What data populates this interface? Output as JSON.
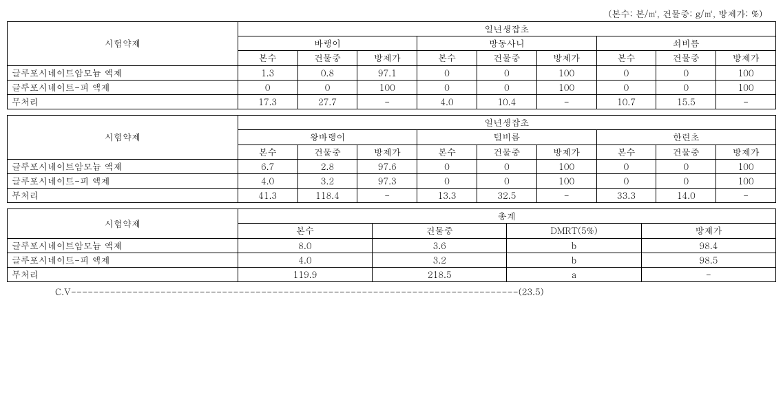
{
  "caption": "(본수: 본/㎡, 건물중: g/㎡, 방제가: %)",
  "row_header_label": "시험약제",
  "group_header1": "일년생잡초",
  "group_header2": "일년생잡초",
  "group_header3": "총계",
  "subcols": [
    "본수",
    "건물중",
    "방제가"
  ],
  "weeds1": [
    "바랭이",
    "방동사니",
    "쇠비름"
  ],
  "weeds2": [
    "왕바랭이",
    "털비름",
    "한련초"
  ],
  "treatments": [
    "글루포시네이트암모늄 액제",
    "글루포시네이트-피 액제",
    "무처리"
  ],
  "table1": {
    "rows": [
      [
        "1.3",
        "0.8",
        "97.1",
        "0",
        "0",
        "100",
        "0",
        "0",
        "100"
      ],
      [
        "0",
        "0",
        "100",
        "0",
        "0",
        "100",
        "0",
        "0",
        "100"
      ],
      [
        "17.3",
        "27.7",
        "-",
        "4.0",
        "10.4",
        "-",
        "10.7",
        "15.5",
        "-"
      ]
    ]
  },
  "table2": {
    "rows": [
      [
        "6.7",
        "2.8",
        "97.6",
        "0",
        "0",
        "100",
        "0",
        "0",
        "100"
      ],
      [
        "4.0",
        "3.2",
        "97.3",
        "0",
        "0",
        "100",
        "0",
        "0",
        "100"
      ],
      [
        "41.3",
        "118.4",
        "-",
        "13.3",
        "32.5",
        "-",
        "33.3",
        "14.0",
        "-"
      ]
    ]
  },
  "table3": {
    "cols": [
      "본수",
      "건물중",
      "DMRT(5%)",
      "방제가"
    ],
    "rows": [
      [
        "8.0",
        "3.6",
        "b",
        "98.4"
      ],
      [
        "4.0",
        "3.2",
        "b",
        "98.5"
      ],
      [
        "119.9",
        "218.5",
        "a",
        "-"
      ]
    ]
  },
  "cv": {
    "label": "C.V",
    "value": "(23.5)"
  },
  "col_widths": {
    "treatment_col": "30%",
    "data_col_9": "7.78%",
    "data_col_4": "17.5%"
  }
}
